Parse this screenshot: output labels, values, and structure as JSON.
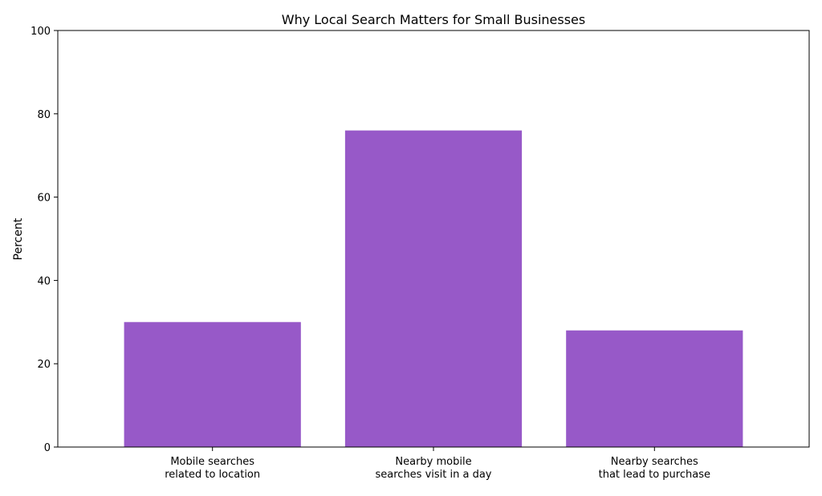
{
  "chart_data": {
    "type": "bar",
    "title": "Why Local Search Matters for Small Businesses",
    "xlabel": "",
    "ylabel": "Percent",
    "categories": [
      [
        "Mobile searches",
        "related to location"
      ],
      [
        "Nearby mobile",
        "searches visit in a day"
      ],
      [
        "Nearby searches",
        "that lead to purchase"
      ]
    ],
    "values": [
      30,
      76,
      28
    ],
    "ylim": [
      0,
      100
    ],
    "yticks": [
      0,
      20,
      40,
      60,
      80,
      100
    ],
    "grid": false,
    "bar_color": "#9759c8"
  }
}
